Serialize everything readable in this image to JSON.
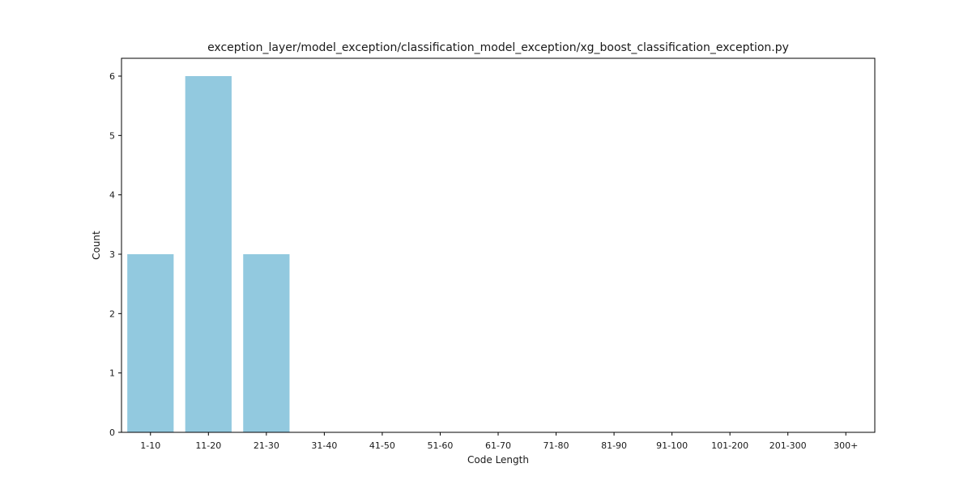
{
  "chart_data": {
    "type": "bar",
    "title": "exception_layer/model_exception/classification_model_exception/xg_boost_classification_exception.py",
    "xlabel": "Code Length",
    "ylabel": "Count",
    "categories": [
      "1-10",
      "11-20",
      "21-30",
      "31-40",
      "41-50",
      "51-60",
      "61-70",
      "71-80",
      "81-90",
      "91-100",
      "101-200",
      "201-300",
      "300+"
    ],
    "values": [
      3,
      6,
      3,
      0,
      0,
      0,
      0,
      0,
      0,
      0,
      0,
      0,
      0
    ],
    "ylim": [
      0,
      6.3
    ],
    "yticks": [
      0,
      1,
      2,
      3,
      4,
      5,
      6
    ],
    "bar_color": "#92c9df",
    "grid": false,
    "legend": "none"
  }
}
